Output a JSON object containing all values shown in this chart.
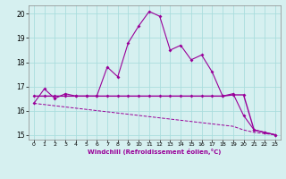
{
  "xlabel": "Windchill (Refroidissement éolien,°C)",
  "bg_color": "#d6f0f0",
  "line_color": "#990099",
  "grid_color": "#aadddd",
  "x_ticks": [
    0,
    1,
    2,
    3,
    4,
    5,
    6,
    7,
    8,
    9,
    10,
    11,
    12,
    13,
    14,
    15,
    16,
    17,
    18,
    19,
    20,
    21,
    22,
    23
  ],
  "xlim": [
    -0.5,
    23.5
  ],
  "ylim": [
    14.8,
    20.35
  ],
  "y_ticks": [
    15,
    16,
    17,
    18,
    19,
    20
  ],
  "series1_x": [
    0,
    1,
    2,
    3,
    4,
    5,
    6,
    7,
    8,
    9,
    10,
    11,
    12,
    13,
    14,
    15,
    16,
    17,
    18,
    19,
    20,
    21,
    22,
    23
  ],
  "series1_y": [
    16.3,
    16.9,
    16.5,
    16.7,
    16.6,
    16.6,
    16.6,
    17.8,
    17.4,
    18.8,
    19.5,
    20.1,
    19.9,
    18.5,
    18.7,
    18.1,
    18.3,
    17.6,
    16.6,
    16.7,
    15.8,
    15.2,
    15.1,
    15.0
  ],
  "series2_x": [
    0,
    1,
    2,
    3,
    4,
    5,
    6,
    7,
    8,
    9,
    10,
    11,
    12,
    13,
    14,
    15,
    16,
    17,
    18,
    19,
    20,
    21,
    22,
    23
  ],
  "series2_y": [
    16.6,
    16.6,
    16.6,
    16.6,
    16.6,
    16.6,
    16.6,
    16.6,
    16.6,
    16.6,
    16.6,
    16.6,
    16.6,
    16.6,
    16.6,
    16.6,
    16.6,
    16.6,
    16.6,
    16.65,
    16.65,
    15.2,
    15.1,
    15.0
  ],
  "series3_x": [
    0,
    1,
    2,
    3,
    4,
    5,
    6,
    7,
    8,
    9,
    10,
    11,
    12,
    13,
    14,
    15,
    16,
    17,
    18,
    19,
    20,
    21,
    22,
    23
  ],
  "series3_y": [
    16.3,
    16.25,
    16.2,
    16.15,
    16.1,
    16.05,
    16.0,
    15.95,
    15.9,
    15.85,
    15.8,
    15.75,
    15.7,
    15.65,
    15.6,
    15.55,
    15.5,
    15.45,
    15.4,
    15.35,
    15.2,
    15.1,
    15.05,
    15.0
  ]
}
